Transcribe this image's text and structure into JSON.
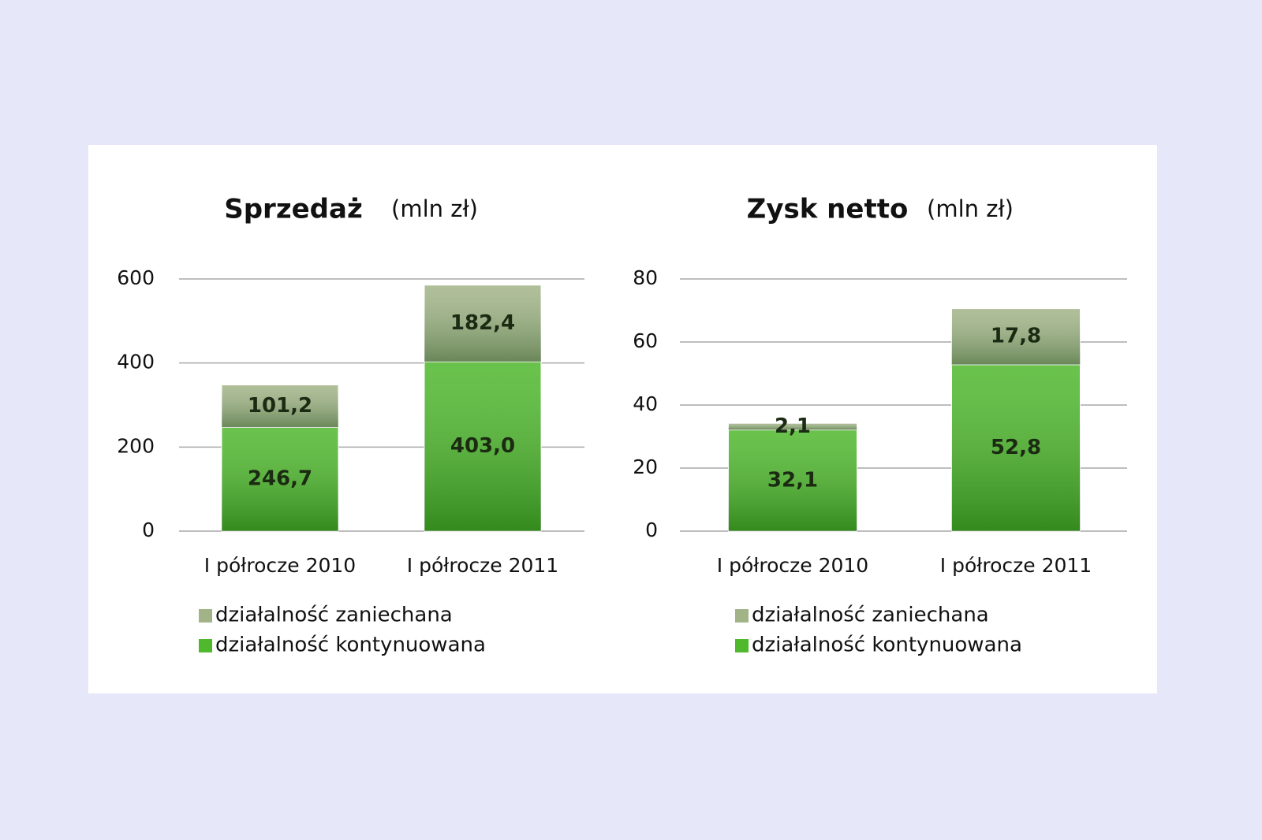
{
  "chart_data": [
    {
      "type": "stacked_bar",
      "title": "Sprzedaż",
      "subtitle": "(mln zł)",
      "categories": [
        "I półrocze 2010",
        "I półrocze 2011"
      ],
      "series": [
        {
          "name": "działalność kontynuowana",
          "color": "#4fb82c",
          "values": [
            246.7,
            403.0
          ],
          "value_labels": [
            "246,7",
            "403,0"
          ]
        },
        {
          "name": "działalność zaniechana",
          "color": "#a2b487",
          "values": [
            101.2,
            182.4
          ],
          "value_labels": [
            "101,2",
            "182,4"
          ]
        }
      ],
      "ylim": [
        0,
        600
      ],
      "yticks": [
        0,
        200,
        400,
        600
      ],
      "grid": true
    },
    {
      "type": "stacked_bar",
      "title": "Zysk netto",
      "subtitle": "(mln zł)",
      "categories": [
        "I półrocze 2010",
        "I półrocze 2011"
      ],
      "series": [
        {
          "name": "działalność kontynuowana",
          "color": "#4fb82c",
          "values": [
            32.1,
            52.8
          ],
          "value_labels": [
            "32,1",
            "52,8"
          ]
        },
        {
          "name": "działalność zaniechana",
          "color": "#a2b487",
          "values": [
            2.1,
            17.8
          ],
          "value_labels": [
            "2,1",
            "17,8"
          ]
        }
      ],
      "ylim": [
        0,
        80
      ],
      "yticks": [
        0,
        20,
        40,
        60,
        80
      ],
      "grid": true
    }
  ]
}
